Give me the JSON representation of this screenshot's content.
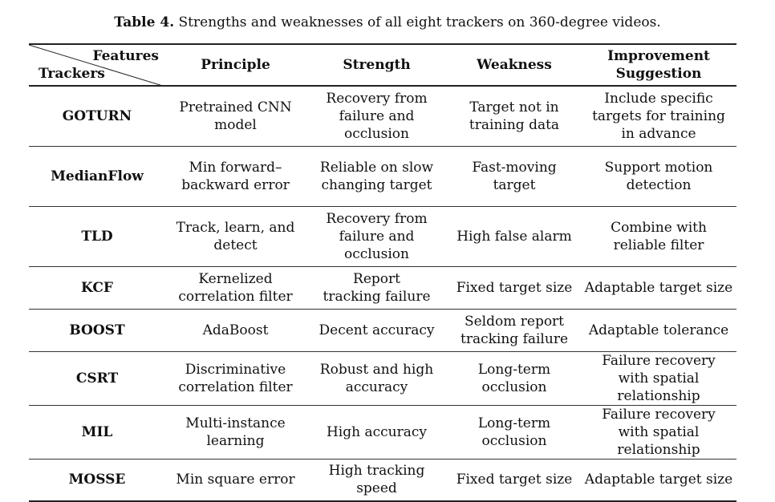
{
  "caption": {
    "label": "Table 4.",
    "text": "Strengths and weaknesses of all eight trackers on 360-degree videos."
  },
  "header": {
    "features": "Features",
    "trackers": "Trackers",
    "principle": "Principle",
    "strength": "Strength",
    "weakness": "Weakness",
    "improvement": "Improvement Suggestion"
  },
  "rows": [
    {
      "tracker": "GOTURN",
      "principle": "Pretrained CNN model",
      "strength": "Recovery from failure and occlusion",
      "weakness": "Target not in training data",
      "improvement": "Include specific targets for training in advance"
    },
    {
      "tracker": "MedianFlow",
      "principle": "Min forward–backward error",
      "strength": "Reliable on slow changing target",
      "weakness": "Fast-moving target",
      "improvement": "Support motion detection"
    },
    {
      "tracker": "TLD",
      "principle": "Track, learn, and detect",
      "strength": "Recovery from failure and occlusion",
      "weakness": "High false alarm",
      "improvement": "Combine with reliable filter"
    },
    {
      "tracker": "KCF",
      "principle": "Kernelized correlation filter",
      "strength": "Report tracking failure",
      "weakness": "Fixed target size",
      "improvement": "Adaptable target size"
    },
    {
      "tracker": "BOOST",
      "principle": "AdaBoost",
      "strength": "Decent accuracy",
      "weakness": "Seldom report tracking failure",
      "improvement": "Adaptable tolerance"
    },
    {
      "tracker": "CSRT",
      "principle": "Discriminative correlation filter",
      "strength": "Robust and high accuracy",
      "weakness": "Long-term occlusion",
      "improvement": "Failure recovery with spatial relationship"
    },
    {
      "tracker": "MIL",
      "principle": "Multi-instance learning",
      "strength": "High accuracy",
      "weakness": "Long-term occlusion",
      "improvement": "Failure recovery with spatial relationship"
    },
    {
      "tracker": "MOSSE",
      "principle": "Min square error",
      "strength": "High tracking speed",
      "weakness": "Fixed target size",
      "improvement": "Adaptable target size"
    }
  ]
}
